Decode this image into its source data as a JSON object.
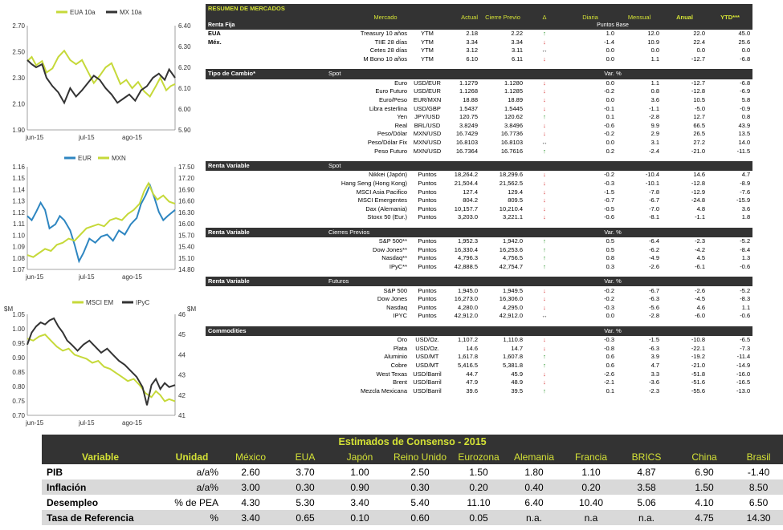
{
  "charts": [
    {
      "id": "rates",
      "legend": [
        "EUA 10a",
        "MX 10a"
      ],
      "colors": [
        "#c6d93a",
        "#333333"
      ],
      "left_ticks": [
        "2.70",
        "2.50",
        "2.30",
        "2.10",
        "1.90"
      ],
      "right_ticks": [
        "6.40",
        "6.30",
        "6.20",
        "6.10",
        "6.00",
        "5.90"
      ],
      "x_ticks": [
        "jun-15",
        "jul-15",
        "ago-15"
      ],
      "left_units": "",
      "right_units": ""
    },
    {
      "id": "fx",
      "legend": [
        "EUR",
        "MXN"
      ],
      "colors": [
        "#2e86c1",
        "#c6d93a"
      ],
      "left_ticks": [
        "1.16",
        "1.15",
        "1.14",
        "1.13",
        "1.12",
        "1.11",
        "1.10",
        "1.09",
        "1.08",
        "1.07"
      ],
      "right_ticks": [
        "17.50",
        "17.20",
        "16.90",
        "16.60",
        "16.30",
        "16.00",
        "15.70",
        "15.40",
        "15.10",
        "14.80"
      ],
      "x_ticks": [
        "jun-15",
        "jul-15",
        "ago-15"
      ],
      "left_units": "",
      "right_units": ""
    },
    {
      "id": "equity",
      "legend": [
        "MSCI EM",
        "IPyC"
      ],
      "colors": [
        "#c6d93a",
        "#333333"
      ],
      "left_ticks": [
        "1.05",
        "1.00",
        "0.95",
        "0.90",
        "0.85",
        "0.80",
        "0.75",
        "0.70"
      ],
      "right_ticks": [
        "46",
        "45",
        "44",
        "43",
        "42",
        "41"
      ],
      "x_ticks": [
        "jun-15",
        "jul-15",
        "ago-15"
      ],
      "left_units": "$M",
      "right_units": "$M"
    }
  ],
  "market": {
    "title": "RESUMEN DE MERCADOS",
    "headers": [
      "Mercado",
      "Actual",
      "Cierre Previo",
      "Δ",
      "Diaria",
      "Mensual",
      "Anual",
      "YTD***"
    ],
    "subheader": "Puntos Base",
    "renta_fija": {
      "label": "Renta Fija",
      "rows": [
        {
          "region": "EUA",
          "name": "Treasury 10 años",
          "unit": "YTM",
          "actual": "2.18",
          "prev": "2.22",
          "dir": "up",
          "d": "1.0",
          "m": "12.0",
          "a": "22.0",
          "y": "45.0"
        },
        {
          "region": "Méx.",
          "name": "TIIE 28 días",
          "unit": "YTM",
          "actual": "3.34",
          "prev": "3.34",
          "dir": "dn",
          "d": "-1.4",
          "m": "10.9",
          "a": "22.4",
          "y": "25.6"
        },
        {
          "region": "",
          "name": "Cetes 28 días",
          "unit": "YTM",
          "actual": "3.12",
          "prev": "3.11",
          "dir": "eq",
          "d": "0.0",
          "m": "0.0",
          "a": "0.0",
          "y": "0.0"
        },
        {
          "region": "",
          "name": "M Bono 10 años",
          "unit": "YTM",
          "actual": "6.10",
          "prev": "6.11",
          "dir": "dn",
          "d": "0.0",
          "m": "1.1",
          "a": "-12.7",
          "y": "-6.8"
        }
      ]
    },
    "tipo_cambio": {
      "label": "Tipo de Cambio*",
      "sub": "Spot",
      "var": "Var. %",
      "rows": [
        {
          "name": "Euro",
          "unit": "USD/EUR",
          "actual": "1.1279",
          "prev": "1.1280",
          "dir": "dn",
          "d": "0.0",
          "m": "1.1",
          "a": "-12.7",
          "y": "-6.8"
        },
        {
          "name": "Euro Futuro",
          "unit": "USD/EUR",
          "actual": "1.1268",
          "prev": "1.1285",
          "dir": "dn",
          "d": "-0.2",
          "m": "0.8",
          "a": "-12.8",
          "y": "-6.9"
        },
        {
          "name": "Euro/Peso",
          "unit": "EUR/MXN",
          "actual": "18.88",
          "prev": "18.89",
          "dir": "dn",
          "d": "0.0",
          "m": "3.6",
          "a": "10.5",
          "y": "5.8"
        },
        {
          "name": "Libra esterlina",
          "unit": "USD/GBP",
          "actual": "1.5437",
          "prev": "1.5445",
          "dir": "dn",
          "d": "-0.1",
          "m": "-1.1",
          "a": "-5.0",
          "y": "-0.9"
        },
        {
          "name": "Yen",
          "unit": "JPY/USD",
          "actual": "120.75",
          "prev": "120.62",
          "dir": "up",
          "d": "0.1",
          "m": "-2.8",
          "a": "12.7",
          "y": "0.8"
        },
        {
          "name": "Real",
          "unit": "BRL/USD",
          "actual": "3.8249",
          "prev": "3.8496",
          "dir": "dn",
          "d": "-0.6",
          "m": "9.9",
          "a": "66.5",
          "y": "43.9"
        },
        {
          "name": "Peso/Dólar",
          "unit": "MXN/USD",
          "actual": "16.7429",
          "prev": "16.7736",
          "dir": "dn",
          "d": "-0.2",
          "m": "2.9",
          "a": "26.5",
          "y": "13.5"
        },
        {
          "name": "Peso/Dólar Fix",
          "unit": "MXN/USD",
          "actual": "16.8103",
          "prev": "16.8103",
          "dir": "eq",
          "d": "0.0",
          "m": "3.1",
          "a": "27.2",
          "y": "14.0"
        },
        {
          "name": "Peso Futuro",
          "unit": "MXN/USD",
          "actual": "16.7364",
          "prev": "16.7616",
          "dir": "up",
          "d": "0.2",
          "m": "-2.4",
          "a": "-21.0",
          "y": "-11.5"
        }
      ]
    },
    "renta_variable_spot": {
      "label": "Renta Variable",
      "sub": "Spot",
      "rows": [
        {
          "name": "Nikkei (Japón)",
          "unit": "Puntos",
          "actual": "18,264.2",
          "prev": "18,299.6",
          "dir": "dn",
          "d": "-0.2",
          "m": "-10.4",
          "a": "14.6",
          "y": "4.7"
        },
        {
          "name": "Hang Seng (Hong Kong)",
          "unit": "Puntos",
          "actual": "21,504.4",
          "prev": "21,562.5",
          "dir": "dn",
          "d": "-0.3",
          "m": "-10.1",
          "a": "-12.8",
          "y": "-8.9"
        },
        {
          "name": "MSCI Asia Pacifico",
          "unit": "Puntos",
          "actual": "127.4",
          "prev": "129.4",
          "dir": "dn",
          "d": "-1.5",
          "m": "-7.8",
          "a": "-12.9",
          "y": "-7.6"
        },
        {
          "name": "MSCI Emergentes",
          "unit": "Puntos",
          "actual": "804.2",
          "prev": "809.5",
          "dir": "dn",
          "d": "-0.7",
          "m": "-6.7",
          "a": "-24.8",
          "y": "-15.9"
        },
        {
          "name": "Dax (Alemania)",
          "unit": "Puntos",
          "actual": "10,157.7",
          "prev": "10,210.4",
          "dir": "dn",
          "d": "-0.5",
          "m": "-7.0",
          "a": "4.8",
          "y": "3.6"
        },
        {
          "name": "Stoxx 50 (Eur.)",
          "unit": "Puntos",
          "actual": "3,203.0",
          "prev": "3,221.1",
          "dir": "dn",
          "d": "-0.6",
          "m": "-8.1",
          "a": "-1.1",
          "y": "1.8"
        }
      ]
    },
    "renta_variable_cierres": {
      "label": "Renta Variable",
      "sub": "Cierres Previos",
      "var": "Var. %",
      "rows": [
        {
          "name": "S&P 500**",
          "unit": "Puntos",
          "actual": "1,952.3",
          "prev": "1,942.0",
          "dir": "up",
          "d": "0.5",
          "m": "-6.4",
          "a": "-2.3",
          "y": "-5.2"
        },
        {
          "name": "Dow Jones**",
          "unit": "Puntos",
          "actual": "16,330.4",
          "prev": "16,253.6",
          "dir": "up",
          "d": "0.5",
          "m": "-6.2",
          "a": "-4.2",
          "y": "-8.4"
        },
        {
          "name": "Nasdaq**",
          "unit": "Puntos",
          "actual": "4,796.3",
          "prev": "4,756.5",
          "dir": "up",
          "d": "0.8",
          "m": "-4.9",
          "a": "4.5",
          "y": "1.3"
        },
        {
          "name": "IPyC**",
          "unit": "Puntos",
          "actual": "42,888.5",
          "prev": "42,754.7",
          "dir": "up",
          "d": "0.3",
          "m": "-2.6",
          "a": "-6.1",
          "y": "-0.6"
        }
      ]
    },
    "renta_variable_futuros": {
      "label": "Renta Variable",
      "sub": "Futuros",
      "var": "Var. %",
      "rows": [
        {
          "name": "S&P 500",
          "unit": "Puntos",
          "actual": "1,945.0",
          "prev": "1,949.5",
          "dir": "dn",
          "d": "-0.2",
          "m": "-6.7",
          "a": "-2.6",
          "y": "-5.2"
        },
        {
          "name": "Dow Jones",
          "unit": "Puntos",
          "actual": "16,273.0",
          "prev": "16,306.0",
          "dir": "dn",
          "d": "-0.2",
          "m": "-6.3",
          "a": "-4.5",
          "y": "-8.3"
        },
        {
          "name": "Nasdaq",
          "unit": "Puntos",
          "actual": "4,280.0",
          "prev": "4,295.0",
          "dir": "dn",
          "d": "-0.3",
          "m": "-5.6",
          "a": "4.6",
          "y": "1.1"
        },
        {
          "name": "IPYC",
          "unit": "Puntos",
          "actual": "42,912.0",
          "prev": "42,912.0",
          "dir": "eq",
          "d": "0.0",
          "m": "-2.8",
          "a": "-6.0",
          "y": "-0.6"
        }
      ]
    },
    "commodities": {
      "label": "Commodities",
      "var": "Var. %",
      "rows": [
        {
          "name": "Oro",
          "unit": "USD/Oz.",
          "actual": "1,107.2",
          "prev": "1,110.8",
          "dir": "dn",
          "d": "-0.3",
          "m": "-1.5",
          "a": "-10.8",
          "y": "-6.5"
        },
        {
          "name": "Plata",
          "unit": "USD/Oz.",
          "actual": "14.6",
          "prev": "14.7",
          "dir": "dn",
          "d": "-0.8",
          "m": "-6.3",
          "a": "-22.1",
          "y": "-7.3"
        },
        {
          "name": "Aluminio",
          "unit": "USD/MT",
          "actual": "1,617.8",
          "prev": "1,607.8",
          "dir": "up",
          "d": "0.6",
          "m": "3.9",
          "a": "-19.2",
          "y": "-11.4"
        },
        {
          "name": "Cobre",
          "unit": "USD/MT",
          "actual": "5,416.5",
          "prev": "5,381.8",
          "dir": "up",
          "d": "0.6",
          "m": "4.7",
          "a": "-21.0",
          "y": "-14.9"
        },
        {
          "name": "West Texas",
          "unit": "USD/Barril",
          "actual": "44.7",
          "prev": "45.9",
          "dir": "dn",
          "d": "-2.6",
          "m": "3.3",
          "a": "-51.8",
          "y": "-16.0"
        },
        {
          "name": "Brent",
          "unit": "USD/Barril",
          "actual": "47.9",
          "prev": "48.9",
          "dir": "dn",
          "d": "-2.1",
          "m": "-3.6",
          "a": "-51.6",
          "y": "-16.5"
        },
        {
          "name": "Mezcla Mexicana",
          "unit": "USD/Barril",
          "actual": "39.6",
          "prev": "39.5",
          "dir": "up",
          "d": "0.1",
          "m": "-2.3",
          "a": "-55.6",
          "y": "-13.0"
        }
      ]
    }
  },
  "consensus": {
    "title": "Estimados de Consenso - 2015",
    "headers": [
      "Variable",
      "Unidad",
      "México",
      "EUA",
      "Japón",
      "Reino Unido",
      "Eurozona",
      "Alemania",
      "Francia",
      "BRICS",
      "China",
      "Brasil"
    ],
    "rows": [
      {
        "label": "PIB",
        "unit": "a/a%",
        "values": [
          "2.60",
          "3.70",
          "1.00",
          "2.50",
          "1.50",
          "1.80",
          "1.10",
          "4.87",
          "6.90",
          "-1.40"
        ]
      },
      {
        "label": "Inflación",
        "unit": "a/a%",
        "values": [
          "3.00",
          "0.30",
          "0.90",
          "0.30",
          "0.20",
          "0.40",
          "0.20",
          "3.58",
          "1.50",
          "8.50"
        ]
      },
      {
        "label": "Desempleo",
        "unit": "% de PEA",
        "values": [
          "4.30",
          "5.30",
          "3.40",
          "5.40",
          "11.10",
          "6.40",
          "10.40",
          "5.06",
          "4.10",
          "6.50"
        ]
      },
      {
        "label": "Tasa de Referencia",
        "unit": "%",
        "values": [
          "3.40",
          "0.65",
          "0.10",
          "0.60",
          "0.05",
          "n.a.",
          "n.a",
          "n.a.",
          "4.75",
          "14.30"
        ]
      }
    ]
  },
  "arrows": {
    "up": "↑",
    "dn": "↓",
    "eq": "↔"
  }
}
